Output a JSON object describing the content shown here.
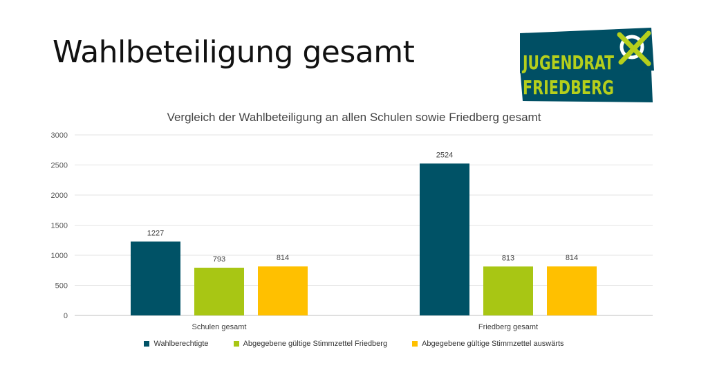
{
  "slide": {
    "title": "Wahlbeteiligung gesamt"
  },
  "logo": {
    "line1": "JUGENDRAT",
    "line2": "FRIEDBERG"
  },
  "colors": {
    "Wahlberechtigte": "#005266",
    "Abgegebene gültige Stimmzettel Friedberg": "#a8c614",
    "Abgegebene gültige Stimmzettel auswärts": "#ffc000",
    "logo_bg": "#004f64",
    "logo_accent": "#b5cf1c"
  },
  "chart_data": {
    "type": "bar",
    "title": "Vergleich der Wahlbeteiligung an allen Schulen sowie Friedberg gesamt",
    "categories": [
      "Schulen gesamt",
      "Friedberg gesamt"
    ],
    "series": [
      {
        "name": "Wahlberechtigte",
        "values": [
          1227,
          2524
        ]
      },
      {
        "name": "Abgegebene gültige Stimmzettel Friedberg",
        "values": [
          793,
          813
        ]
      },
      {
        "name": "Abgegebene gültige Stimmzettel auswärts",
        "values": [
          814,
          814
        ]
      }
    ],
    "xlabel": "",
    "ylabel": "",
    "ylim": [
      0,
      3000
    ],
    "yticks": [
      0,
      500,
      1000,
      1500,
      2000,
      2500,
      3000
    ],
    "grid": true,
    "legend": "bottom",
    "data_labels": true
  }
}
